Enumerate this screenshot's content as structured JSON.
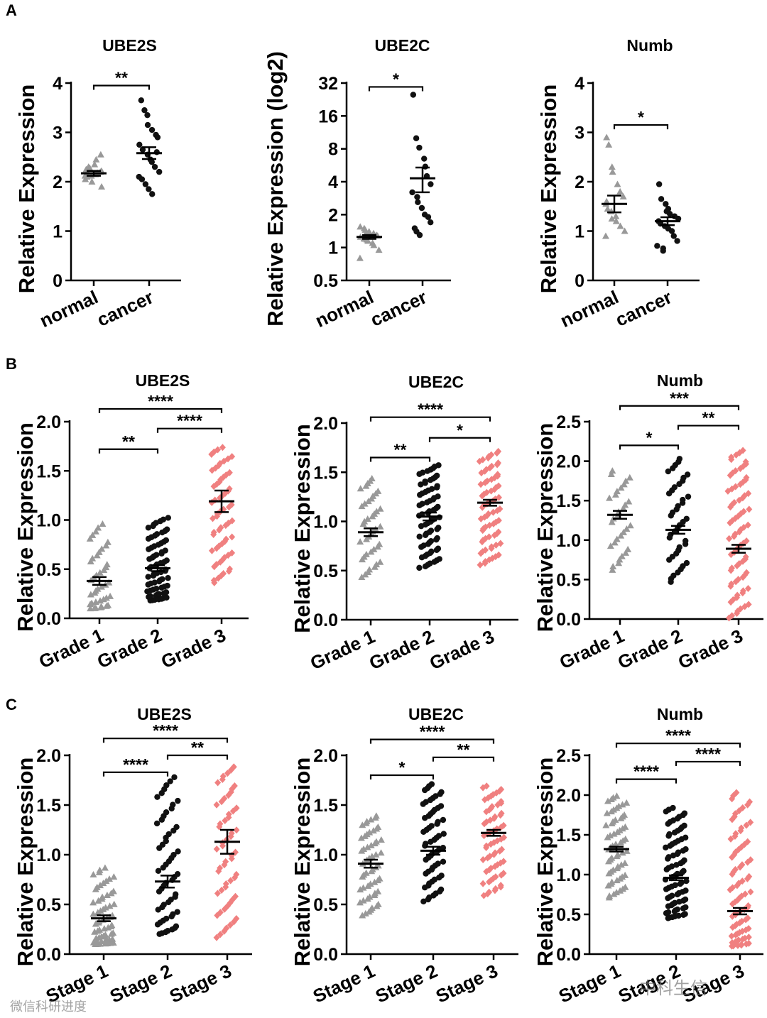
{
  "colors": {
    "normal": "#999999",
    "cancer": "#111111",
    "group3": "#F08080",
    "axis": "#000000"
  },
  "panel_letters": [
    "A",
    "B",
    "C"
  ],
  "watermark": {
    "left": "微信科研进度",
    "right": "中科生信"
  },
  "chart_data": [
    {
      "panel": "A",
      "type": "scatter",
      "title": "UBE2S",
      "ylabel": "Relative Expression",
      "scale": "linear",
      "ylim": [
        0,
        4
      ],
      "yticks": [
        0,
        1,
        2,
        3,
        4
      ],
      "ytick_labels": [
        "0",
        "1",
        "2",
        "3",
        "4"
      ],
      "categories": [
        "normal",
        "cancer"
      ],
      "groups": [
        {
          "name": "normal",
          "marker": "triangle",
          "color_key": "normal",
          "mean": 2.17,
          "sem": 0.05,
          "values": [
            2.05,
            2.1,
            2.12,
            2.15,
            2.18,
            2.2,
            2.22,
            2.25,
            2.3,
            2.0,
            2.35,
            2.45,
            2.55,
            1.9,
            2.12,
            2.18,
            2.28
          ]
        },
        {
          "name": "cancer",
          "marker": "circle",
          "color_key": "cancer",
          "mean": 2.58,
          "sem": 0.12,
          "values": [
            3.65,
            3.45,
            3.35,
            3.15,
            3.05,
            2.95,
            2.9,
            2.75,
            2.65,
            2.55,
            2.45,
            2.4,
            2.3,
            2.2,
            2.1,
            2.05,
            1.95,
            1.85,
            1.75,
            2.6
          ]
        }
      ],
      "significance": [
        {
          "from": 0,
          "to": 1,
          "label": "**",
          "y": 3.95
        }
      ]
    },
    {
      "panel": "A",
      "type": "scatter",
      "title": "UBE2C",
      "ylabel": "Relative Expression (log2)",
      "scale": "log2",
      "ylim": [
        0.5,
        32
      ],
      "yticks": [
        0.5,
        1,
        2,
        4,
        8,
        16,
        32
      ],
      "ytick_labels": [
        "0.5",
        "1",
        "2",
        "4",
        "8",
        "16",
        "32"
      ],
      "categories": [
        "normal",
        "cancer"
      ],
      "groups": [
        {
          "name": "normal",
          "marker": "triangle",
          "color_key": "normal",
          "mean": 1.25,
          "sem": 0.05,
          "values": [
            1.55,
            1.5,
            1.45,
            1.4,
            1.35,
            1.3,
            1.28,
            1.25,
            1.2,
            1.18,
            1.15,
            1.1,
            1.05,
            0.95,
            0.8,
            1.22,
            1.32
          ]
        },
        {
          "name": "cancer",
          "marker": "circle",
          "color_key": "cancer",
          "mean": 4.3,
          "sem": 1.1,
          "values": [
            25,
            10,
            8.2,
            6.5,
            5.5,
            4.5,
            3.8,
            3.2,
            2.9,
            2.6,
            2.3,
            2.0,
            1.9,
            1.7,
            1.5,
            1.4,
            1.3
          ]
        }
      ],
      "significance": [
        {
          "from": 0,
          "to": 1,
          "label": "*",
          "y": 29.5
        }
      ]
    },
    {
      "panel": "A",
      "type": "scatter",
      "title": "Numb",
      "ylabel": "Relative Expression",
      "scale": "linear",
      "ylim": [
        0,
        4
      ],
      "yticks": [
        0,
        1,
        2,
        3,
        4
      ],
      "ytick_labels": [
        "0",
        "1",
        "2",
        "3",
        "4"
      ],
      "categories": [
        "normal",
        "cancer"
      ],
      "groups": [
        {
          "name": "normal",
          "marker": "triangle",
          "color_key": "normal",
          "mean": 1.55,
          "sem": 0.17,
          "values": [
            2.9,
            2.75,
            2.3,
            2.2,
            1.95,
            1.8,
            1.7,
            1.55,
            1.45,
            1.4,
            1.3,
            1.2,
            1.1,
            1.0,
            0.9,
            1.6,
            1.25
          ]
        },
        {
          "name": "cancer",
          "marker": "circle",
          "color_key": "cancer",
          "mean": 1.2,
          "sem": 0.08,
          "values": [
            1.95,
            1.65,
            1.55,
            1.45,
            1.35,
            1.3,
            1.25,
            1.2,
            1.15,
            1.1,
            1.05,
            1.0,
            0.9,
            0.8,
            0.7,
            0.65,
            0.6,
            1.4
          ]
        }
      ],
      "significance": [
        {
          "from": 0,
          "to": 1,
          "label": "*",
          "y": 3.15
        }
      ]
    },
    {
      "panel": "B",
      "type": "scatter",
      "title": "UBE2S",
      "ylabel": "Relative Expression",
      "scale": "linear",
      "ylim": [
        0,
        2.0
      ],
      "yticks": [
        0,
        0.5,
        1.0,
        1.5,
        2.0
      ],
      "ytick_labels": [
        "0.0",
        "0.5",
        "1.0",
        "1.5",
        "2.0"
      ],
      "categories": [
        "Grade 1",
        "Grade 2",
        "Grade 3"
      ],
      "groups": [
        {
          "name": "Grade 1",
          "marker": "triangle",
          "color_key": "normal",
          "mean": 0.38,
          "sem": 0.04,
          "n": 40,
          "min": 0.1,
          "max": 0.98,
          "skew": 1.8
        },
        {
          "name": "Grade 2",
          "marker": "circle",
          "color_key": "cancer",
          "mean": 0.51,
          "sem": 0.03,
          "n": 70,
          "min": 0.18,
          "max": 1.03,
          "skew": 1.4
        },
        {
          "name": "Grade 3",
          "marker": "diamond",
          "color_key": "group3",
          "mean": 1.19,
          "sem": 0.11,
          "n": 60,
          "min": 0.35,
          "max": 1.75,
          "skew": 1.0
        }
      ],
      "significance": [
        {
          "from": 0,
          "to": 1,
          "label": "**",
          "y": 1.72
        },
        {
          "from": 1,
          "to": 2,
          "label": "****",
          "y": 1.93
        },
        {
          "from": 0,
          "to": 2,
          "label": "****",
          "y": 2.13
        }
      ]
    },
    {
      "panel": "B",
      "type": "scatter",
      "title": "UBE2C",
      "ylabel": "Relative Expression",
      "scale": "linear",
      "ylim": [
        0,
        2.0
      ],
      "yticks": [
        0,
        0.5,
        1.0,
        1.5,
        2.0
      ],
      "ytick_labels": [
        "0.0",
        "0.5",
        "1.0",
        "1.5",
        "2.0"
      ],
      "categories": [
        "Grade 1",
        "Grade 2",
        "Grade 3"
      ],
      "groups": [
        {
          "name": "Grade 1",
          "marker": "triangle",
          "color_key": "normal",
          "mean": 0.89,
          "sem": 0.04,
          "n": 40,
          "min": 0.42,
          "max": 1.45,
          "skew": 1.0
        },
        {
          "name": "Grade 2",
          "marker": "circle",
          "color_key": "cancer",
          "mean": 1.05,
          "sem": 0.04,
          "n": 70,
          "min": 0.52,
          "max": 1.58,
          "skew": 1.0
        },
        {
          "name": "Grade 3",
          "marker": "diamond",
          "color_key": "group3",
          "mean": 1.19,
          "sem": 0.03,
          "n": 70,
          "min": 0.55,
          "max": 1.72,
          "skew": 1.0
        }
      ],
      "significance": [
        {
          "from": 0,
          "to": 1,
          "label": "**",
          "y": 1.65
        },
        {
          "from": 1,
          "to": 2,
          "label": "*",
          "y": 1.85
        },
        {
          "from": 0,
          "to": 2,
          "label": "****",
          "y": 2.06
        }
      ]
    },
    {
      "panel": "B",
      "type": "scatter",
      "title": "Numb",
      "ylabel": "Relative Expression",
      "scale": "linear",
      "ylim": [
        0,
        2.5
      ],
      "yticks": [
        0,
        0.5,
        1.0,
        1.5,
        2.0,
        2.5
      ],
      "ytick_labels": [
        "0.0",
        "0.5",
        "1.0",
        "1.5",
        "2.0",
        "2.5"
      ],
      "categories": [
        "Grade 1",
        "Grade 2",
        "Grade 3"
      ],
      "groups": [
        {
          "name": "Grade 1",
          "marker": "triangle",
          "color_key": "normal",
          "mean": 1.32,
          "sem": 0.05,
          "n": 30,
          "min": 0.6,
          "max": 1.9,
          "skew": 1.0
        },
        {
          "name": "Grade 2",
          "marker": "circle",
          "color_key": "cancer",
          "mean": 1.13,
          "sem": 0.05,
          "n": 40,
          "min": 0.45,
          "max": 2.05,
          "skew": 1.0
        },
        {
          "name": "Grade 3",
          "marker": "diamond",
          "color_key": "group3",
          "mean": 0.89,
          "sem": 0.05,
          "n": 75,
          "min": 0.0,
          "max": 2.15,
          "skew": 1.0
        }
      ],
      "significance": [
        {
          "from": 0,
          "to": 1,
          "label": "*",
          "y": 2.2
        },
        {
          "from": 1,
          "to": 2,
          "label": "**",
          "y": 2.45
        },
        {
          "from": 0,
          "to": 2,
          "label": "***",
          "y": 2.7
        }
      ]
    },
    {
      "panel": "C",
      "type": "scatter",
      "title": "UBE2S",
      "ylabel": "Relative Expression",
      "scale": "linear",
      "ylim": [
        0,
        2.0
      ],
      "yticks": [
        0,
        0.5,
        1.0,
        1.5,
        2.0
      ],
      "ytick_labels": [
        "0.0",
        "0.5",
        "1.0",
        "1.5",
        "2.0"
      ],
      "categories": [
        "Stage 1",
        "Stage 2",
        "Stage 3"
      ],
      "groups": [
        {
          "name": "Stage 1",
          "marker": "triangle",
          "color_key": "normal",
          "mean": 0.36,
          "sem": 0.03,
          "n": 60,
          "min": 0.1,
          "max": 0.88,
          "skew": 1.8
        },
        {
          "name": "Stage 2",
          "marker": "circle",
          "color_key": "cancer",
          "mean": 0.73,
          "sem": 0.06,
          "n": 55,
          "min": 0.2,
          "max": 1.8,
          "skew": 1.4
        },
        {
          "name": "Stage 3",
          "marker": "diamond",
          "color_key": "group3",
          "mean": 1.13,
          "sem": 0.12,
          "n": 55,
          "min": 0.15,
          "max": 1.9,
          "skew": 1.0
        }
      ],
      "significance": [
        {
          "from": 0,
          "to": 1,
          "label": "****",
          "y": 1.83
        },
        {
          "from": 1,
          "to": 2,
          "label": "**",
          "y": 2.0
        },
        {
          "from": 0,
          "to": 2,
          "label": "****",
          "y": 2.17
        }
      ]
    },
    {
      "panel": "C",
      "type": "scatter",
      "title": "UBE2C",
      "ylabel": "Relative Expression",
      "scale": "linear",
      "ylim": [
        0,
        2.0
      ],
      "yticks": [
        0,
        0.5,
        1.0,
        1.5,
        2.0
      ],
      "ytick_labels": [
        "0.0",
        "0.5",
        "1.0",
        "1.5",
        "2.0"
      ],
      "categories": [
        "Stage 1",
        "Stage 2",
        "Stage 3"
      ],
      "groups": [
        {
          "name": "Stage 1",
          "marker": "triangle",
          "color_key": "normal",
          "mean": 0.91,
          "sem": 0.04,
          "n": 55,
          "min": 0.38,
          "max": 1.4,
          "skew": 1.0
        },
        {
          "name": "Stage 2",
          "marker": "circle",
          "color_key": "cancer",
          "mean": 1.04,
          "sem": 0.04,
          "n": 60,
          "min": 0.52,
          "max": 1.72,
          "skew": 1.0
        },
        {
          "name": "Stage 3",
          "marker": "diamond",
          "color_key": "group3",
          "mean": 1.22,
          "sem": 0.03,
          "n": 65,
          "min": 0.58,
          "max": 1.7,
          "skew": 1.0
        }
      ],
      "significance": [
        {
          "from": 0,
          "to": 1,
          "label": "*",
          "y": 1.8
        },
        {
          "from": 1,
          "to": 2,
          "label": "**",
          "y": 1.98
        },
        {
          "from": 0,
          "to": 2,
          "label": "****",
          "y": 2.16
        }
      ]
    },
    {
      "panel": "C",
      "type": "scatter",
      "title": "Numb",
      "ylabel": "Relative Expression",
      "scale": "linear",
      "ylim": [
        0,
        2.5
      ],
      "yticks": [
        0,
        0.5,
        1.0,
        1.5,
        2.0,
        2.5
      ],
      "ytick_labels": [
        "0.0",
        "0.5",
        "1.0",
        "1.5",
        "2.0",
        "2.5"
      ],
      "categories": [
        "Stage 1",
        "Stage 2",
        "Stage 3"
      ],
      "groups": [
        {
          "name": "Stage 1",
          "marker": "triangle",
          "color_key": "normal",
          "mean": 1.32,
          "sem": 0.03,
          "n": 60,
          "min": 0.7,
          "max": 2.0,
          "skew": 1.0
        },
        {
          "name": "Stage 2",
          "marker": "circle",
          "color_key": "cancer",
          "mean": 0.96,
          "sem": 0.03,
          "n": 80,
          "min": 0.45,
          "max": 1.85,
          "skew": 1.3
        },
        {
          "name": "Stage 3",
          "marker": "diamond",
          "color_key": "group3",
          "mean": 0.54,
          "sem": 0.04,
          "n": 80,
          "min": 0.1,
          "max": 2.05,
          "skew": 1.6
        }
      ],
      "significance": [
        {
          "from": 0,
          "to": 1,
          "label": "****",
          "y": 2.2
        },
        {
          "from": 1,
          "to": 2,
          "label": "****",
          "y": 2.42
        },
        {
          "from": 0,
          "to": 2,
          "label": "****",
          "y": 2.65
        }
      ]
    }
  ]
}
